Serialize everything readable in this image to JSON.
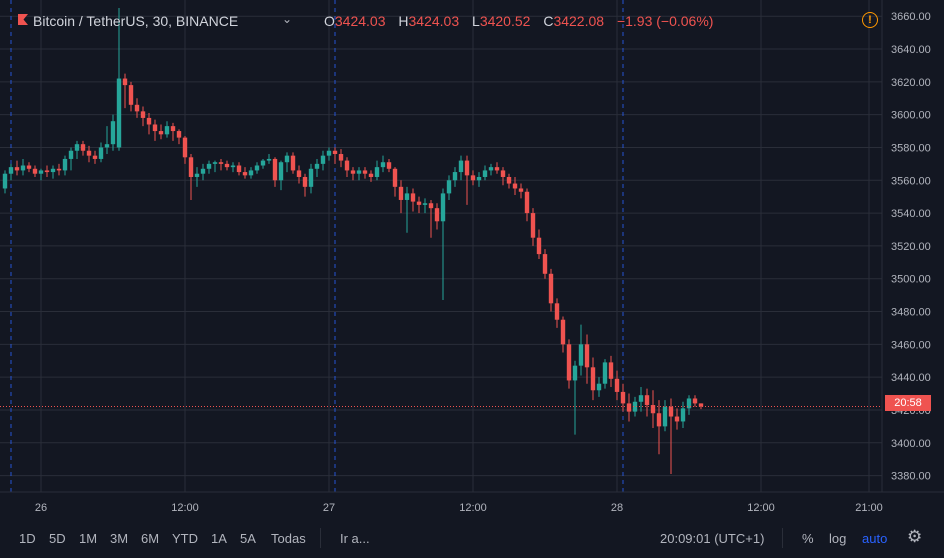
{
  "header": {
    "symbol": "Bitcoin / TetherUS, 30, BINANCE",
    "ohlc": [
      {
        "label": "O",
        "value": "3424.03"
      },
      {
        "label": "H",
        "value": "3424.03"
      },
      {
        "label": "L",
        "value": "3420.52"
      },
      {
        "label": "C",
        "value": "3422.08"
      }
    ],
    "change": "−1.93 (−0.06%)",
    "alert_icon_glyph": "!"
  },
  "price_tag": "20:58",
  "bottom": {
    "ranges": [
      "1D",
      "5D",
      "1M",
      "3M",
      "6M",
      "YTD",
      "1A",
      "5A",
      "Todas"
    ],
    "goto": "Ir a...",
    "time": "20:09:01 (UTC+1)",
    "percent": "%",
    "log": "log",
    "auto": "auto"
  },
  "colors": {
    "background": "#131722",
    "up": "#26a69a",
    "down": "#ef5350",
    "grid": "#2a2e39",
    "session_line": "#2962ff"
  },
  "chart_data": {
    "type": "candlestick",
    "title": "Bitcoin / TetherUS, 30, BINANCE",
    "ylim": [
      3370,
      3665
    ],
    "y_ticks": [
      "3660.00",
      "3640.00",
      "3620.00",
      "3600.00",
      "3580.00",
      "3560.00",
      "3540.00",
      "3520.00",
      "3500.00",
      "3480.00",
      "3460.00",
      "3440.00",
      "3420.00",
      "3400.00",
      "3380.00"
    ],
    "x_ticks": [
      "26",
      "12:00",
      "27",
      "12:00",
      "28",
      "12:00",
      "21:00"
    ],
    "x_tick_slots": [
      6,
      30,
      54,
      78,
      102,
      126,
      144
    ],
    "session_breaks_slots": [
      1,
      55,
      103
    ],
    "last_price": 3422.08,
    "grid": true,
    "candles": [
      [
        3555,
        3566,
        3552,
        3564
      ],
      [
        3564,
        3570,
        3560,
        3568
      ],
      [
        3568,
        3572,
        3563,
        3566
      ],
      [
        3566,
        3573,
        3563,
        3569
      ],
      [
        3569,
        3571,
        3565,
        3567
      ],
      [
        3567,
        3569,
        3562,
        3564
      ],
      [
        3564,
        3567,
        3560,
        3566
      ],
      [
        3566,
        3569,
        3562,
        3565
      ],
      [
        3565,
        3569,
        3561,
        3567
      ],
      [
        3567,
        3570,
        3563,
        3566
      ],
      [
        3566,
        3575,
        3563,
        3573
      ],
      [
        3573,
        3580,
        3566,
        3578
      ],
      [
        3578,
        3584,
        3573,
        3582
      ],
      [
        3582,
        3584,
        3575,
        3578
      ],
      [
        3578,
        3581,
        3571,
        3575
      ],
      [
        3575,
        3578,
        3570,
        3573
      ],
      [
        3573,
        3583,
        3571,
        3580
      ],
      [
        3580,
        3593,
        3576,
        3582
      ],
      [
        3582,
        3600,
        3578,
        3596
      ],
      [
        3580,
        3665,
        3578,
        3622
      ],
      [
        3622,
        3625,
        3604,
        3618
      ],
      [
        3618,
        3620,
        3602,
        3606
      ],
      [
        3606,
        3610,
        3598,
        3602
      ],
      [
        3602,
        3605,
        3593,
        3598
      ],
      [
        3598,
        3601,
        3588,
        3594
      ],
      [
        3594,
        3597,
        3584,
        3590
      ],
      [
        3590,
        3594,
        3585,
        3588
      ],
      [
        3588,
        3596,
        3586,
        3593
      ],
      [
        3593,
        3595,
        3584,
        3590
      ],
      [
        3590,
        3591,
        3582,
        3586
      ],
      [
        3586,
        3587,
        3570,
        3574
      ],
      [
        3574,
        3576,
        3548,
        3562
      ],
      [
        3562,
        3568,
        3556,
        3564
      ],
      [
        3564,
        3570,
        3560,
        3567
      ],
      [
        3567,
        3572,
        3564,
        3570
      ],
      [
        3570,
        3572,
        3565,
        3571
      ],
      [
        3571,
        3573,
        3566,
        3570
      ],
      [
        3570,
        3572,
        3566,
        3568
      ],
      [
        3568,
        3571,
        3565,
        3569
      ],
      [
        3569,
        3571,
        3563,
        3565
      ],
      [
        3565,
        3568,
        3561,
        3563
      ],
      [
        3563,
        3568,
        3561,
        3566
      ],
      [
        3566,
        3571,
        3564,
        3569
      ],
      [
        3569,
        3573,
        3567,
        3572
      ],
      [
        3572,
        3576,
        3570,
        3573
      ],
      [
        3573,
        3574,
        3556,
        3560
      ],
      [
        3560,
        3572,
        3554,
        3571
      ],
      [
        3571,
        3577,
        3565,
        3575
      ],
      [
        3575,
        3577,
        3564,
        3566
      ],
      [
        3566,
        3569,
        3558,
        3562
      ],
      [
        3562,
        3564,
        3550,
        3556
      ],
      [
        3556,
        3570,
        3552,
        3567
      ],
      [
        3567,
        3573,
        3562,
        3570
      ],
      [
        3570,
        3578,
        3566,
        3575
      ],
      [
        3575,
        3580,
        3572,
        3578
      ],
      [
        3578,
        3580,
        3570,
        3576
      ],
      [
        3576,
        3579,
        3568,
        3572
      ],
      [
        3572,
        3574,
        3562,
        3566
      ],
      [
        3566,
        3568,
        3560,
        3564
      ],
      [
        3564,
        3568,
        3560,
        3566
      ],
      [
        3566,
        3568,
        3561,
        3564
      ],
      [
        3564,
        3566,
        3559,
        3562
      ],
      [
        3562,
        3572,
        3560,
        3568
      ],
      [
        3568,
        3575,
        3565,
        3571
      ],
      [
        3571,
        3573,
        3565,
        3567
      ],
      [
        3567,
        3568,
        3550,
        3556
      ],
      [
        3556,
        3560,
        3540,
        3548
      ],
      [
        3548,
        3556,
        3528,
        3552
      ],
      [
        3552,
        3555,
        3541,
        3547
      ],
      [
        3547,
        3550,
        3540,
        3545
      ],
      [
        3545,
        3549,
        3540,
        3546
      ],
      [
        3546,
        3548,
        3525,
        3543
      ],
      [
        3543,
        3546,
        3530,
        3535
      ],
      [
        3535,
        3555,
        3487,
        3552
      ],
      [
        3552,
        3563,
        3548,
        3560
      ],
      [
        3560,
        3568,
        3556,
        3565
      ],
      [
        3565,
        3575,
        3560,
        3572
      ],
      [
        3572,
        3575,
        3545,
        3563
      ],
      [
        3563,
        3566,
        3557,
        3560
      ],
      [
        3560,
        3565,
        3556,
        3562
      ],
      [
        3562,
        3569,
        3560,
        3566
      ],
      [
        3566,
        3570,
        3563,
        3568
      ],
      [
        3568,
        3571,
        3564,
        3566
      ],
      [
        3566,
        3568,
        3557,
        3562
      ],
      [
        3562,
        3564,
        3555,
        3558
      ],
      [
        3558,
        3562,
        3551,
        3555
      ],
      [
        3555,
        3558,
        3549,
        3553
      ],
      [
        3553,
        3555,
        3535,
        3540
      ],
      [
        3540,
        3543,
        3520,
        3525
      ],
      [
        3525,
        3530,
        3512,
        3515
      ],
      [
        3515,
        3518,
        3500,
        3503
      ],
      [
        3503,
        3506,
        3480,
        3485
      ],
      [
        3485,
        3488,
        3470,
        3475
      ],
      [
        3475,
        3477,
        3455,
        3460
      ],
      [
        3460,
        3463,
        3433,
        3438
      ],
      [
        3438,
        3450,
        3405,
        3447
      ],
      [
        3447,
        3472,
        3441,
        3460
      ],
      [
        3460,
        3466,
        3436,
        3446
      ],
      [
        3446,
        3452,
        3426,
        3432
      ],
      [
        3432,
        3440,
        3428,
        3436
      ],
      [
        3436,
        3451,
        3433,
        3449
      ],
      [
        3449,
        3453,
        3434,
        3439
      ],
      [
        3439,
        3444,
        3426,
        3431
      ],
      [
        3431,
        3436,
        3419,
        3424
      ],
      [
        3424,
        3430,
        3413,
        3419
      ],
      [
        3419,
        3428,
        3416,
        3425
      ],
      [
        3425,
        3434,
        3419,
        3429
      ],
      [
        3429,
        3433,
        3416,
        3423
      ],
      [
        3423,
        3432,
        3409,
        3418
      ],
      [
        3418,
        3426,
        3393,
        3410
      ],
      [
        3410,
        3426,
        3407,
        3422
      ],
      [
        3422,
        3427,
        3381,
        3416
      ],
      [
        3416,
        3421,
        3408,
        3413
      ],
      [
        3413,
        3425,
        3409,
        3421
      ],
      [
        3421,
        3429,
        3417,
        3427
      ],
      [
        3427,
        3429,
        3422,
        3424
      ],
      [
        3424,
        3424,
        3420.52,
        3422.08
      ]
    ]
  }
}
